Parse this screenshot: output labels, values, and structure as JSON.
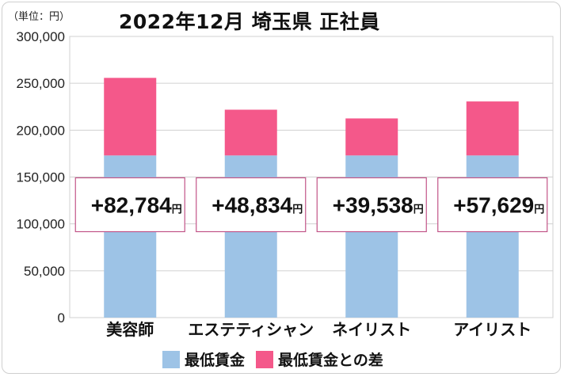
{
  "unit_label": "（単位：円）",
  "chart_data": {
    "type": "bar",
    "stacked": true,
    "title": "2022年12月 埼玉県 正社員",
    "categories": [
      "美容師",
      "エステティシャン",
      "ネイリスト",
      "アイリスト"
    ],
    "series": [
      {
        "name": "最低賃金",
        "color": "#9dc3e6",
        "values": [
          173000,
          173000,
          173000,
          173000
        ]
      },
      {
        "name": "最低賃金との差",
        "color": "#f4588a",
        "values": [
          82784,
          48834,
          39538,
          57629
        ]
      }
    ],
    "data_labels": [
      "+82,784",
      "+48,834",
      "+39,538",
      "+57,629"
    ],
    "data_label_unit": "円",
    "ylim": [
      0,
      300000
    ],
    "yticks": [
      0,
      50000,
      100000,
      150000,
      200000,
      250000,
      300000
    ],
    "ytick_labels": [
      "0",
      "50,000",
      "100,000",
      "150,000",
      "200,000",
      "250,000",
      "300,000"
    ],
    "grid": true,
    "legend_position": "bottom"
  }
}
